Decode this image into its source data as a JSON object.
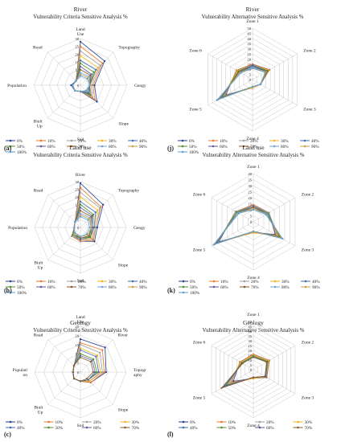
{
  "figure_title": "",
  "legend_keys_9": [
    "0%",
    "10%",
    "20%",
    "30%",
    "40%",
    "50%",
    "60%",
    "70%",
    "80%",
    "90%",
    "100%"
  ],
  "legend_keys_8": [
    "0%",
    "10%",
    "20%",
    "30%",
    "40%",
    "50%",
    "60%",
    "70%"
  ],
  "series_colors": [
    "#1f3f8f",
    "#e8772a",
    "#9e9e9e",
    "#f2b21b",
    "#3b6db3",
    "#4f8f2f",
    "#5a5a9a",
    "#8a5a2a",
    "#6fa3d8",
    "#c8a040",
    "#5aa0d8"
  ],
  "chart_data": [
    {
      "type": "radar",
      "panel": "(a)",
      "title_line1": "River",
      "title_line2": "Vulnerability Criteria Sensitive Analysis %",
      "axes": [
        "Land Use",
        "Topography",
        "Geogy",
        "Slope",
        "Soil",
        "Biult Up",
        "Population",
        "Road"
      ],
      "ticks": [
        "0",
        "5",
        "10",
        "15",
        "20",
        "25",
        "30"
      ],
      "rmax": 30,
      "series": [
        {
          "name": "0%",
          "values": [
            28,
            22,
            9,
            15,
            4,
            5,
            6,
            4
          ]
        },
        {
          "name": "10%",
          "values": [
            25,
            20,
            8,
            13,
            4,
            5,
            5,
            4
          ]
        },
        {
          "name": "20%",
          "values": [
            22,
            18,
            7,
            11,
            4,
            5,
            5,
            4
          ]
        },
        {
          "name": "30%",
          "values": [
            19,
            16,
            6,
            10,
            4,
            5,
            5,
            4
          ]
        },
        {
          "name": "40%",
          "values": [
            16,
            14,
            6,
            9,
            4,
            5,
            5,
            4
          ]
        },
        {
          "name": "50%",
          "values": [
            14,
            12,
            6,
            8,
            4,
            5,
            5,
            4
          ]
        },
        {
          "name": "60%",
          "values": [
            12,
            10,
            6,
            7,
            4,
            5,
            5,
            4
          ]
        },
        {
          "name": "70%",
          "values": [
            10,
            9,
            6,
            6,
            4,
            5,
            5,
            4
          ]
        },
        {
          "name": "80%",
          "values": [
            8,
            8,
            6,
            6,
            4,
            5,
            5,
            4
          ]
        },
        {
          "name": "90%",
          "values": [
            7,
            7,
            6,
            5,
            4,
            5,
            5,
            4
          ]
        },
        {
          "name": "100%",
          "values": [
            6,
            6,
            6,
            5,
            4,
            5,
            5,
            4
          ]
        }
      ]
    },
    {
      "type": "radar",
      "panel": "(j)",
      "title_line1": "River",
      "title_line2": "Vulnerability Alternative  Sensitive Analysis %",
      "axes": [
        "Zone 1",
        "Zone 2",
        "Zone 3",
        "Zone 4",
        "Zone 5",
        "Zone 6"
      ],
      "ticks": [
        "0",
        "5",
        "10",
        "15",
        "20",
        "25",
        "30",
        "35",
        "40",
        "45",
        "50"
      ],
      "rmax": 50,
      "series": [
        {
          "name": "0%",
          "values": [
            15,
            19,
            9,
            8,
            30,
            18
          ]
        },
        {
          "name": "10%",
          "values": [
            15,
            19,
            9,
            8,
            31,
            18
          ]
        },
        {
          "name": "20%",
          "values": [
            14,
            18,
            9,
            8,
            32,
            17
          ]
        },
        {
          "name": "30%",
          "values": [
            14,
            18,
            9,
            8,
            33,
            17
          ]
        },
        {
          "name": "40%",
          "values": [
            14,
            17,
            9,
            7,
            34,
            16
          ]
        },
        {
          "name": "50%",
          "values": [
            13,
            17,
            9,
            7,
            35,
            16
          ]
        },
        {
          "name": "60%",
          "values": [
            13,
            16,
            9,
            7,
            36,
            15
          ]
        },
        {
          "name": "70%",
          "values": [
            12,
            16,
            9,
            7,
            37,
            15
          ]
        },
        {
          "name": "80%",
          "values": [
            12,
            15,
            9,
            7,
            38,
            14
          ]
        },
        {
          "name": "90%",
          "values": [
            11,
            15,
            9,
            7,
            39,
            14
          ]
        },
        {
          "name": "100%",
          "values": [
            11,
            14,
            9,
            7,
            40,
            13
          ]
        }
      ]
    },
    {
      "type": "radar",
      "panel": "(b)",
      "title_line1": "Land use",
      "title_line2": "Vulnerability Criteria Sensitive Analysis %",
      "axes": [
        "River",
        "Topography",
        "Geogy",
        "Slope",
        "Soil",
        "Biult Up",
        "Population",
        "Road"
      ],
      "ticks": [
        "0",
        "5",
        "10",
        "15",
        "20",
        "25",
        "30"
      ],
      "rmax": 30,
      "series": [
        {
          "name": "0%",
          "values": [
            29,
            21,
            11,
            13,
            9,
            8,
            4,
            5
          ]
        },
        {
          "name": "10%",
          "values": [
            26,
            19,
            10,
            12,
            9,
            8,
            4,
            5
          ]
        },
        {
          "name": "20%",
          "values": [
            23,
            18,
            10,
            11,
            8,
            8,
            4,
            5
          ]
        },
        {
          "name": "30%",
          "values": [
            20,
            16,
            9,
            10,
            8,
            7,
            4,
            5
          ]
        },
        {
          "name": "40%",
          "values": [
            17,
            14,
            9,
            9,
            8,
            7,
            4,
            5
          ]
        },
        {
          "name": "50%",
          "values": [
            15,
            12,
            8,
            9,
            7,
            7,
            4,
            5
          ]
        },
        {
          "name": "60%",
          "values": [
            13,
            11,
            8,
            8,
            7,
            6,
            4,
            5
          ]
        },
        {
          "name": "70%",
          "values": [
            11,
            10,
            7,
            8,
            7,
            6,
            4,
            5
          ]
        },
        {
          "name": "80%",
          "values": [
            9,
            9,
            7,
            7,
            6,
            6,
            4,
            5
          ]
        },
        {
          "name": "90%",
          "values": [
            8,
            8,
            7,
            7,
            6,
            6,
            4,
            5
          ]
        },
        {
          "name": "100%",
          "values": [
            7,
            7,
            6,
            6,
            6,
            5,
            4,
            5
          ]
        }
      ]
    },
    {
      "type": "radar",
      "panel": "(k)",
      "title_line1": "Land use",
      "title_line2": "Vulnerability Alternative  Sensitive Analysis %",
      "axes": [
        "Zone 1",
        "Zone 2",
        "Zone 3",
        "Zone 4",
        "Zone 5",
        "Zone 6"
      ],
      "ticks": [
        "0",
        "5",
        "10",
        "15",
        "20",
        "25",
        "30",
        "35",
        "40"
      ],
      "rmax": 40,
      "series": [
        {
          "name": "0%",
          "values": [
            14,
            15,
            21,
            9,
            33,
            17
          ]
        },
        {
          "name": "10%",
          "values": [
            14,
            15,
            22,
            9,
            34,
            17
          ]
        },
        {
          "name": "20%",
          "values": [
            13,
            15,
            23,
            9,
            34,
            17
          ]
        },
        {
          "name": "30%",
          "values": [
            13,
            14,
            24,
            9,
            35,
            16
          ]
        },
        {
          "name": "40%",
          "values": [
            13,
            14,
            25,
            8,
            35,
            16
          ]
        },
        {
          "name": "50%",
          "values": [
            12,
            14,
            25,
            8,
            36,
            16
          ]
        },
        {
          "name": "60%",
          "values": [
            12,
            13,
            26,
            8,
            36,
            15
          ]
        },
        {
          "name": "70%",
          "values": [
            12,
            13,
            26,
            8,
            37,
            15
          ]
        },
        {
          "name": "80%",
          "values": [
            11,
            13,
            27,
            8,
            37,
            15
          ]
        },
        {
          "name": "90%",
          "values": [
            11,
            12,
            27,
            8,
            38,
            14
          ]
        },
        {
          "name": "100%",
          "values": [
            10,
            12,
            28,
            8,
            38,
            14
          ]
        }
      ]
    },
    {
      "type": "radar",
      "panel": "(c)",
      "title_line1": "Geology",
      "title_line2": "Vulnerability Criteria Sensitive Analysis %",
      "axes": [
        "Land Use",
        "River",
        "Topogr aphy",
        "Slope",
        "Soil",
        "Biult Up",
        "Populati on",
        "Road"
      ],
      "ticks": [
        "0",
        "5",
        "10",
        "15",
        "20",
        "25"
      ],
      "rmax": 25,
      "series": [
        {
          "name": "0%",
          "values": [
            18,
            19,
            14,
            8,
            5,
            5,
            4,
            5
          ]
        },
        {
          "name": "10%",
          "values": [
            16,
            17,
            13,
            8,
            5,
            5,
            4,
            5
          ]
        },
        {
          "name": "20%",
          "values": [
            15,
            15,
            12,
            7,
            5,
            5,
            4,
            5
          ]
        },
        {
          "name": "30%",
          "values": [
            13,
            13,
            11,
            7,
            5,
            5,
            4,
            5
          ]
        },
        {
          "name": "40%",
          "values": [
            12,
            12,
            10,
            6,
            5,
            5,
            4,
            5
          ]
        },
        {
          "name": "50%",
          "values": [
            10,
            10,
            9,
            6,
            5,
            5,
            4,
            5
          ]
        },
        {
          "name": "60%",
          "values": [
            9,
            9,
            8,
            6,
            5,
            5,
            4,
            5
          ]
        },
        {
          "name": "70%",
          "values": [
            8,
            8,
            7,
            5,
            5,
            5,
            4,
            5
          ]
        }
      ]
    },
    {
      "type": "radar",
      "panel": "(l)",
      "title_line1": "Geology",
      "title_line2": "Vulnerability Alternative Sensitive Analysis %",
      "axes": [
        "Zone 1",
        "Zone 2",
        "Zone 3",
        "Zone 4",
        "Zone 5",
        "Zone 6"
      ],
      "ticks": [
        "0",
        "5",
        "10",
        "15",
        "20",
        "25",
        "30",
        "35",
        "40",
        "45",
        "50"
      ],
      "rmax": 50,
      "series": [
        {
          "name": "0%",
          "values": [
            16,
            19,
            16,
            9,
            24,
            16
          ]
        },
        {
          "name": "10%",
          "values": [
            16,
            19,
            16,
            9,
            26,
            16
          ]
        },
        {
          "name": "20%",
          "values": [
            15,
            18,
            15,
            9,
            28,
            15
          ]
        },
        {
          "name": "30%",
          "values": [
            15,
            18,
            15,
            9,
            30,
            15
          ]
        },
        {
          "name": "40%",
          "values": [
            14,
            17,
            15,
            8,
            32,
            14
          ]
        },
        {
          "name": "50%",
          "values": [
            14,
            17,
            14,
            8,
            34,
            14
          ]
        },
        {
          "name": "60%",
          "values": [
            13,
            16,
            14,
            8,
            36,
            13
          ]
        },
        {
          "name": "70%",
          "values": [
            13,
            16,
            14,
            8,
            38,
            13
          ]
        }
      ]
    }
  ]
}
